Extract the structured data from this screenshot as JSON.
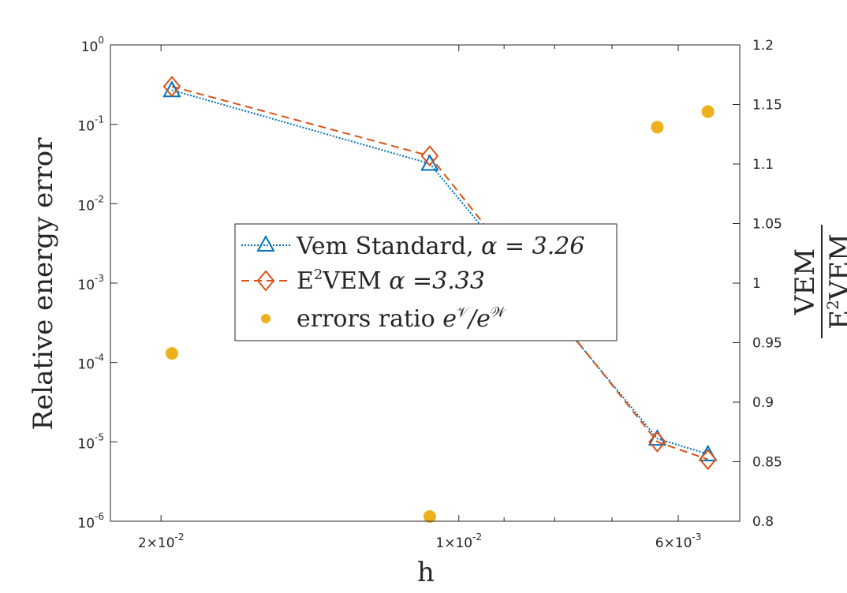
{
  "chart_data": {
    "type": "line",
    "xlabel": "h",
    "ylabel_left": "Relative energy error",
    "ylabel_right": {
      "numerator": "VEM",
      "denominator_prefix": "E",
      "denominator_sup": "2",
      "denominator_suffix": "VEM"
    },
    "x_reversed": true,
    "x_scale": "log",
    "xlim": [
      0.0225,
      0.0052
    ],
    "x_ticks": [
      {
        "value": 0.02,
        "base": "2×10",
        "exp": "-2"
      },
      {
        "value": 0.01,
        "base": "1×10",
        "exp": "-2"
      },
      {
        "value": 0.006,
        "base": "6×10",
        "exp": "-3"
      }
    ],
    "x_minor_ticks": [
      0.009,
      0.008,
      0.007
    ],
    "left_axis": {
      "scale": "log",
      "ylim": [
        1e-06,
        1
      ],
      "ticks": [
        {
          "value": 1e-06,
          "base": "10",
          "exp": "-6"
        },
        {
          "value": 1e-05,
          "base": "10",
          "exp": "-5"
        },
        {
          "value": 0.0001,
          "base": "10",
          "exp": "-4"
        },
        {
          "value": 0.001,
          "base": "10",
          "exp": "-3"
        },
        {
          "value": 0.01,
          "base": "10",
          "exp": "-2"
        },
        {
          "value": 0.1,
          "base": "10",
          "exp": "-1"
        },
        {
          "value": 1,
          "base": "10",
          "exp": "0"
        }
      ]
    },
    "right_axis": {
      "scale": "linear",
      "ylim": [
        0.8,
        1.2
      ],
      "ticks": [
        "0.8",
        "0.85",
        "0.9",
        "0.95",
        "1",
        "1.05",
        "1.1",
        "1.15",
        "1.2"
      ]
    },
    "x": [
      0.0195,
      0.0107,
      0.0063,
      0.0056
    ],
    "series": [
      {
        "name": "Vem Standard",
        "legend_prefix": "Vem Standard, ",
        "legend_alpha": "α = 3.26",
        "axis": "left",
        "color": "#0072BD",
        "linestyle": "dotted",
        "marker": "triangle",
        "points": [
          [
            0.0195,
            0.27
          ],
          [
            0.0107,
            0.032
          ],
          [
            0.0063,
            1.1e-05
          ],
          [
            0.0056,
            7e-06
          ]
        ]
      },
      {
        "name": "E2VEM",
        "legend_prefix": "E",
        "legend_sup": "2",
        "legend_suffix": "VEM ",
        "legend_alpha": "α =3.33",
        "axis": "left",
        "color": "#D95319",
        "linestyle": "dashed",
        "marker": "diamond",
        "points": [
          [
            0.0195,
            0.3
          ],
          [
            0.0107,
            0.04
          ],
          [
            0.0063,
            1e-05
          ],
          [
            0.0056,
            6e-06
          ]
        ]
      },
      {
        "name": "errors ratio",
        "legend_prefix": "errors ratio ",
        "legend_math": "e",
        "legend_sup1": "𝒱",
        "legend_mid": "/e",
        "legend_sup2": "𝒲",
        "axis": "right",
        "color": "#EDB120",
        "linestyle": "none",
        "marker": "circle",
        "points": [
          [
            0.0195,
            0.941
          ],
          [
            0.0107,
            0.804
          ],
          [
            0.0063,
            1.131
          ],
          [
            0.0056,
            1.144
          ]
        ]
      }
    ],
    "legend_position": "center-left"
  }
}
